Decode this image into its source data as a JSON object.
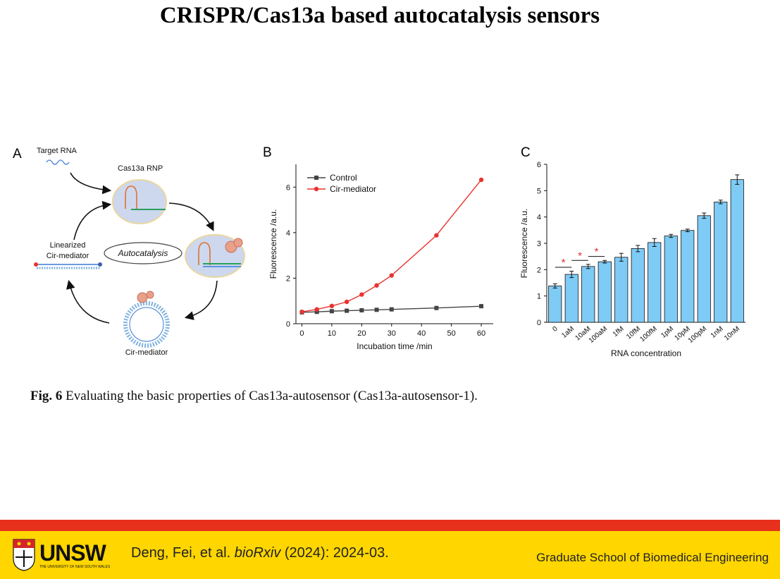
{
  "slide": {
    "title": "CRISPR/Cas13a based autocatalysis sensors",
    "caption_bold": "Fig. 6",
    "caption_rest": " Evaluating the basic properties of Cas13a-autosensor (Cas13a-autosensor-1)."
  },
  "panels": {
    "a": "A",
    "b": "B",
    "c": "C"
  },
  "diagram": {
    "target_rna": "Target RNA",
    "rnp": "Cas13a RNP",
    "linearized_line1": "Linearized",
    "linearized_line2": "Cir-mediator",
    "autocatalysis": "Autocatalysis",
    "cir_mediator": "Cir-mediator"
  },
  "footer": {
    "logo_text": "UNSW",
    "logo_subtext": "THE UNIVERSITY OF NEW SOUTH WALES",
    "citation_plain": "Deng, Fei, et al. ",
    "citation_italic": "bioRxiv",
    "citation_tail": " (2024): 2024-03.",
    "school": "Graduate School of Biomedical Engineering"
  },
  "colors": {
    "red_bar": "#e8311c",
    "footer_yellow": "#ffd600",
    "control": "#444444",
    "cir": "#e8332f",
    "bar_fill": "#7ecbf5",
    "star": "#e03030"
  },
  "chart_data": [
    {
      "type": "line",
      "xlabel": "Incubation time /min",
      "ylabel": "Fluorescence /a.u.",
      "xlim": [
        -2,
        64
      ],
      "ylim": [
        0,
        7
      ],
      "xticks": [
        0,
        10,
        20,
        30,
        40,
        50,
        60
      ],
      "yticks": [
        0,
        2,
        4,
        6
      ],
      "legend_position": "top-left",
      "series": [
        {
          "name": "Control",
          "marker": "square",
          "color": "#444444",
          "x": [
            0,
            5,
            10,
            15,
            20,
            25,
            30,
            45,
            60
          ],
          "y": [
            0.5,
            0.52,
            0.55,
            0.57,
            0.59,
            0.61,
            0.63,
            0.69,
            0.77
          ]
        },
        {
          "name": "Cir-mediator",
          "marker": "circle",
          "color": "#e8332f",
          "x": [
            0,
            5,
            10,
            15,
            20,
            25,
            30,
            45,
            60
          ],
          "y": [
            0.52,
            0.63,
            0.78,
            0.96,
            1.28,
            1.68,
            2.12,
            3.88,
            6.32
          ]
        }
      ]
    },
    {
      "type": "bar",
      "xlabel": "RNA concentration",
      "ylabel": "Fluorescence /a.u.",
      "ylim": [
        0,
        6
      ],
      "yticks": [
        0,
        1,
        2,
        3,
        4,
        5,
        6
      ],
      "categories": [
        "0",
        "1aM",
        "10aM",
        "100aM",
        "1fM",
        "10fM",
        "100fM",
        "1pM",
        "10pM",
        "100pM",
        "1nM",
        "10nM"
      ],
      "values": [
        1.38,
        1.82,
        2.12,
        2.3,
        2.47,
        2.8,
        3.03,
        3.28,
        3.49,
        4.05,
        4.57,
        5.42
      ],
      "errors": [
        0.08,
        0.12,
        0.08,
        0.05,
        0.15,
        0.12,
        0.15,
        0.06,
        0.05,
        0.1,
        0.07,
        0.18
      ],
      "significance": [
        {
          "from": "0",
          "to": "1aM",
          "label": "*"
        },
        {
          "from": "1aM",
          "to": "10aM",
          "label": "*"
        },
        {
          "from": "10aM",
          "to": "100aM",
          "label": "*"
        }
      ]
    }
  ]
}
